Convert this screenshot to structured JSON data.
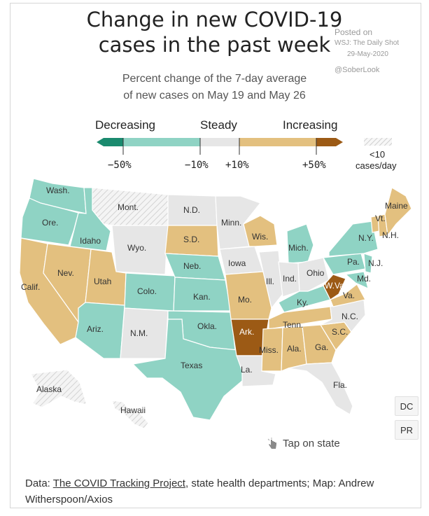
{
  "title_line1": "Change in new COVID-19",
  "title_line2": "cases in the past week",
  "posted": {
    "line1": "Posted on",
    "line2": "WSJ: The Daily Shot",
    "line3": "29-May-2020",
    "line4": "@SoberLook"
  },
  "subtitle_line1": "Percent change of the 7-day average",
  "subtitle_line2": "of new cases on May 19 and May 26",
  "legend": {
    "decreasing": "Decreasing",
    "steady": "Steady",
    "increasing": "Increasing",
    "ticks": [
      "−50%",
      "−10%",
      "+10%",
      "+50%"
    ],
    "small_line1": "<10",
    "small_line2": "cases/day"
  },
  "colors": {
    "strong_decrease": "#1a8a6e",
    "decrease": "#8fd3c4",
    "steady": "#e6e6e6",
    "increase": "#e3c07f",
    "strong_increase": "#9c5a15",
    "low_cases": "#f2f2f2"
  },
  "states": {
    "wash": "Wash.",
    "ore": "Ore.",
    "calif": "Calif.",
    "idaho": "Idaho",
    "nev": "Nev.",
    "mont": "Mont.",
    "wyo": "Wyo.",
    "utah": "Utah",
    "ariz": "Ariz.",
    "colo": "Colo.",
    "nm": "N.M.",
    "nd": "N.D.",
    "sd": "S.D.",
    "neb": "Neb.",
    "kan": "Kan.",
    "okla": "Okla.",
    "texas": "Texas",
    "minn": "Minn.",
    "iowa": "Iowa",
    "mo": "Mo.",
    "ark": "Ark.",
    "la": "La.",
    "wis": "Wis.",
    "ill": "Ill.",
    "mich": "Mich.",
    "ind": "Ind.",
    "ohio": "Ohio",
    "ky": "Ky.",
    "tenn": "Tenn.",
    "miss": "Miss.",
    "ala": "Ala.",
    "ga": "Ga.",
    "fla": "Fla.",
    "sc": "S.C.",
    "nc": "N.C.",
    "va": "Va.",
    "wva": "W.Va.",
    "md": "Md.",
    "pa": "Pa.",
    "nj": "N.J.",
    "ny": "N.Y.",
    "vt": "Vt.",
    "nh": "N.H.",
    "maine": "Maine",
    "alaska": "Alaska",
    "hawaii": "Hawaii"
  },
  "buttons": {
    "dc": "DC",
    "pr": "PR"
  },
  "tap_label": "Tap on state",
  "footer": {
    "prefix": "Data: ",
    "link": "The COVID Tracking Project",
    "suffix": ", state health departments; Map: Andrew Witherspoon/Axios"
  }
}
